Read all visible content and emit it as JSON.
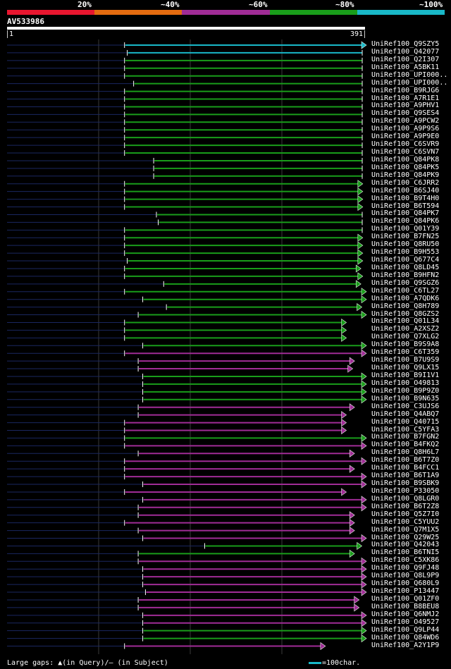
{
  "legend": {
    "labels": [
      "20%",
      "~40%",
      "~60%",
      "~80%",
      "~100%"
    ],
    "colors": [
      "#e8162f",
      "#e36b10",
      "#a02c96",
      "#199d1a",
      "#19b8c8"
    ]
  },
  "query": {
    "name": "AV533986",
    "start": "1",
    "end": "391",
    "length": 391
  },
  "hits": [
    {
      "name": "UniRef100_Q9SZY5",
      "start": 130,
      "end": 391,
      "color": "#19b8c8",
      "arrow": true
    },
    {
      "name": "UniRef100_Q42077",
      "start": 133,
      "end": 391,
      "color": "#19b8c8",
      "arrow": false
    },
    {
      "name": "UniRef100_Q2I307",
      "start": 130,
      "end": 391,
      "color": "#199d1a",
      "arrow": false
    },
    {
      "name": "UniRef100_A5BK11",
      "start": 130,
      "end": 391,
      "color": "#199d1a",
      "arrow": false
    },
    {
      "name": "UniRef100_UPI000..",
      "start": 130,
      "end": 391,
      "color": "#199d1a",
      "arrow": false
    },
    {
      "name": "UniRef100_UPI000..",
      "start": 140,
      "end": 391,
      "color": "#199d1a",
      "arrow": false
    },
    {
      "name": "UniRef100_B9RJG6",
      "start": 130,
      "end": 391,
      "color": "#199d1a",
      "arrow": false
    },
    {
      "name": "UniRef100_A7R1E1",
      "start": 130,
      "end": 391,
      "color": "#199d1a",
      "arrow": false
    },
    {
      "name": "UniRef100_A9PHV1",
      "start": 130,
      "end": 391,
      "color": "#199d1a",
      "arrow": false
    },
    {
      "name": "UniRef100_Q9SES4",
      "start": 130,
      "end": 391,
      "color": "#199d1a",
      "arrow": false
    },
    {
      "name": "UniRef100_A9PCW2",
      "start": 130,
      "end": 391,
      "color": "#199d1a",
      "arrow": false
    },
    {
      "name": "UniRef100_A9P9S6",
      "start": 130,
      "end": 391,
      "color": "#199d1a",
      "arrow": false
    },
    {
      "name": "UniRef100_A9P9E0",
      "start": 130,
      "end": 391,
      "color": "#199d1a",
      "arrow": false
    },
    {
      "name": "UniRef100_C6SVR9",
      "start": 130,
      "end": 391,
      "color": "#199d1a",
      "arrow": false
    },
    {
      "name": "UniRef100_C6SVN7",
      "start": 130,
      "end": 391,
      "color": "#199d1a",
      "arrow": false
    },
    {
      "name": "UniRef100_Q84PK8",
      "start": 162,
      "end": 391,
      "color": "#199d1a",
      "arrow": false
    },
    {
      "name": "UniRef100_Q84PK5",
      "start": 162,
      "end": 391,
      "color": "#199d1a",
      "arrow": false
    },
    {
      "name": "UniRef100_Q84PK9",
      "start": 162,
      "end": 391,
      "color": "#199d1a",
      "arrow": false
    },
    {
      "name": "UniRef100_C6JRR2",
      "start": 130,
      "end": 387,
      "color": "#199d1a",
      "arrow": true
    },
    {
      "name": "UniRef100_B6SJ40",
      "start": 130,
      "end": 387,
      "color": "#199d1a",
      "arrow": true
    },
    {
      "name": "UniRef100_B9T4H0",
      "start": 130,
      "end": 387,
      "color": "#199d1a",
      "arrow": true
    },
    {
      "name": "UniRef100_B6T594",
      "start": 130,
      "end": 387,
      "color": "#199d1a",
      "arrow": true
    },
    {
      "name": "UniRef100_Q84PK7",
      "start": 165,
      "end": 391,
      "color": "#199d1a",
      "arrow": false
    },
    {
      "name": "UniRef100_Q84PK6",
      "start": 167,
      "end": 391,
      "color": "#199d1a",
      "arrow": false
    },
    {
      "name": "UniRef100_Q01Y39",
      "start": 130,
      "end": 391,
      "color": "#199d1a",
      "arrow": false
    },
    {
      "name": "UniRef100_B7FN25",
      "start": 130,
      "end": 387,
      "color": "#199d1a",
      "arrow": true
    },
    {
      "name": "UniRef100_Q8RU50",
      "start": 130,
      "end": 387,
      "color": "#199d1a",
      "arrow": true
    },
    {
      "name": "UniRef100_B9H553",
      "start": 130,
      "end": 387,
      "color": "#199d1a",
      "arrow": true
    },
    {
      "name": "UniRef100_Q677C4",
      "start": 133,
      "end": 387,
      "color": "#199d1a",
      "arrow": true
    },
    {
      "name": "UniRef100_Q8LD45",
      "start": 130,
      "end": 385,
      "color": "#199d1a",
      "arrow": true
    },
    {
      "name": "UniRef100_B9HFN2",
      "start": 130,
      "end": 387,
      "color": "#199d1a",
      "arrow": true
    },
    {
      "name": "UniRef100_Q9SGZ6",
      "start": 173,
      "end": 385,
      "color": "#199d1a",
      "arrow": true
    },
    {
      "name": "UniRef100_C6TL27",
      "start": 130,
      "end": 391,
      "color": "#199d1a",
      "arrow": true
    },
    {
      "name": "UniRef100_A7QDK6",
      "start": 150,
      "end": 391,
      "color": "#199d1a",
      "arrow": true
    },
    {
      "name": "UniRef100_Q8H789",
      "start": 176,
      "end": 386,
      "color": "#199d1a",
      "arrow": true
    },
    {
      "name": "UniRef100_Q8GZS2",
      "start": 145,
      "end": 391,
      "color": "#199d1a",
      "arrow": true
    },
    {
      "name": "UniRef100_Q01L34",
      "start": 130,
      "end": 369,
      "color": "#199d1a",
      "arrow": true
    },
    {
      "name": "UniRef100_A2XSZ2",
      "start": 130,
      "end": 369,
      "color": "#199d1a",
      "arrow": true
    },
    {
      "name": "UniRef100_Q7XLG2",
      "start": 130,
      "end": 369,
      "color": "#199d1a",
      "arrow": true
    },
    {
      "name": "UniRef100_B9S9A8",
      "start": 150,
      "end": 391,
      "color": "#199d1a",
      "arrow": true
    },
    {
      "name": "UniRef100_C6T359",
      "start": 130,
      "end": 391,
      "color": "#a02c96",
      "arrow": true
    },
    {
      "name": "UniRef100_B7U9S9",
      "start": 145,
      "end": 378,
      "color": "#a02c96",
      "arrow": true
    },
    {
      "name": "UniRef100_Q9LX15",
      "start": 145,
      "end": 376,
      "color": "#a02c96",
      "arrow": true
    },
    {
      "name": "UniRef100_B9I1V1",
      "start": 150,
      "end": 391,
      "color": "#199d1a",
      "arrow": true
    },
    {
      "name": "UniRef100_O49813",
      "start": 150,
      "end": 391,
      "color": "#199d1a",
      "arrow": true
    },
    {
      "name": "UniRef100_B9P9Z0",
      "start": 150,
      "end": 391,
      "color": "#199d1a",
      "arrow": true
    },
    {
      "name": "UniRef100_B9N635",
      "start": 150,
      "end": 391,
      "color": "#199d1a",
      "arrow": true
    },
    {
      "name": "UniRef100_C3UJS6",
      "start": 145,
      "end": 378,
      "color": "#a02c96",
      "arrow": true
    },
    {
      "name": "UniRef100_Q4ABQ7",
      "start": 145,
      "end": 369,
      "color": "#a02c96",
      "arrow": true
    },
    {
      "name": "UniRef100_Q40715",
      "start": 130,
      "end": 369,
      "color": "#a02c96",
      "arrow": true
    },
    {
      "name": "UniRef100_C5YFA3",
      "start": 130,
      "end": 369,
      "color": "#a02c96",
      "arrow": true
    },
    {
      "name": "UniRef100_B7FGN2",
      "start": 130,
      "end": 391,
      "color": "#199d1a",
      "arrow": true
    },
    {
      "name": "UniRef100_B4FKQ2",
      "start": 130,
      "end": 391,
      "color": "#a02c96",
      "arrow": true
    },
    {
      "name": "UniRef100_Q8H6L7",
      "start": 145,
      "end": 378,
      "color": "#a02c96",
      "arrow": true
    },
    {
      "name": "UniRef100_B6T7Z0",
      "start": 130,
      "end": 391,
      "color": "#a02c96",
      "arrow": true
    },
    {
      "name": "UniRef100_B4FCC1",
      "start": 130,
      "end": 378,
      "color": "#a02c96",
      "arrow": true
    },
    {
      "name": "UniRef100_B6T1A9",
      "start": 130,
      "end": 391,
      "color": "#a02c96",
      "arrow": true
    },
    {
      "name": "UniRef100_B9SBK9",
      "start": 150,
      "end": 391,
      "color": "#a02c96",
      "arrow": true
    },
    {
      "name": "UniRef100_P33050",
      "start": 130,
      "end": 369,
      "color": "#a02c96",
      "arrow": true
    },
    {
      "name": "UniRef100_Q8LGR0",
      "start": 150,
      "end": 391,
      "color": "#a02c96",
      "arrow": true
    },
    {
      "name": "UniRef100_B6T2Z8",
      "start": 145,
      "end": 391,
      "color": "#a02c96",
      "arrow": true
    },
    {
      "name": "UniRef100_Q5Z7I0",
      "start": 145,
      "end": 378,
      "color": "#a02c96",
      "arrow": true
    },
    {
      "name": "UniRef100_C5YUU2",
      "start": 130,
      "end": 378,
      "color": "#a02c96",
      "arrow": true
    },
    {
      "name": "UniRef100_Q7M1X5",
      "start": 145,
      "end": 378,
      "color": "#a02c96",
      "arrow": true
    },
    {
      "name": "UniRef100_Q29W25",
      "start": 150,
      "end": 391,
      "color": "#a02c96",
      "arrow": true
    },
    {
      "name": "UniRef100_Q42043",
      "start": 218,
      "end": 386,
      "color": "#199d1a",
      "arrow": true
    },
    {
      "name": "UniRef100_B6TNI5",
      "start": 145,
      "end": 378,
      "color": "#199d1a",
      "arrow": true
    },
    {
      "name": "UniRef100_C5XK86",
      "start": 145,
      "end": 391,
      "color": "#a02c96",
      "arrow": true
    },
    {
      "name": "UniRef100_Q9FJ48",
      "start": 150,
      "end": 391,
      "color": "#a02c96",
      "arrow": true
    },
    {
      "name": "UniRef100_Q8L9P9",
      "start": 150,
      "end": 391,
      "color": "#a02c96",
      "arrow": true
    },
    {
      "name": "UniRef100_Q680L9",
      "start": 150,
      "end": 391,
      "color": "#a02c96",
      "arrow": true
    },
    {
      "name": "UniRef100_P13447",
      "start": 153,
      "end": 391,
      "color": "#a02c96",
      "arrow": true
    },
    {
      "name": "UniRef100_Q01ZF0",
      "start": 145,
      "end": 383,
      "color": "#a02c96",
      "arrow": true
    },
    {
      "name": "UniRef100_B8BEU8",
      "start": 145,
      "end": 383,
      "color": "#a02c96",
      "arrow": true
    },
    {
      "name": "UniRef100_Q6NMJ2",
      "start": 150,
      "end": 391,
      "color": "#a02c96",
      "arrow": true
    },
    {
      "name": "UniRef100_O49527",
      "start": 150,
      "end": 391,
      "color": "#a02c96",
      "arrow": true
    },
    {
      "name": "UniRef100_Q9LP44",
      "start": 150,
      "end": 391,
      "color": "#199d1a",
      "arrow": true
    },
    {
      "name": "UniRef100_Q84WD6",
      "start": 150,
      "end": 391,
      "color": "#199d1a",
      "arrow": true
    },
    {
      "name": "UniRef100_A2Y1P9",
      "start": 130,
      "end": 346,
      "color": "#a02c96",
      "arrow": true
    }
  ],
  "footer": {
    "gaps_label": "Large gaps: ▲(in Query)/– (in Subject)",
    "scale_label": "=100char."
  }
}
